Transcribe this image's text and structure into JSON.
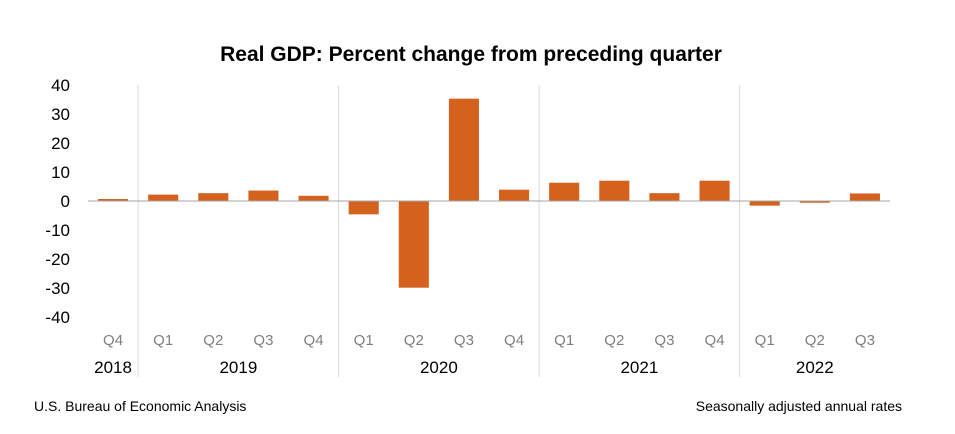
{
  "chart_data": {
    "type": "bar",
    "title": "Real GDP:  Percent change from preceding quarter",
    "categories": [
      "Q4",
      "Q1",
      "Q2",
      "Q3",
      "Q4",
      "Q1",
      "Q2",
      "Q3",
      "Q4",
      "Q1",
      "Q2",
      "Q3",
      "Q4",
      "Q1",
      "Q2",
      "Q3"
    ],
    "years": [
      {
        "label": "2018",
        "start": 0,
        "end": 0
      },
      {
        "label": "2019",
        "start": 1,
        "end": 4
      },
      {
        "label": "2020",
        "start": 5,
        "end": 8
      },
      {
        "label": "2021",
        "start": 9,
        "end": 12
      },
      {
        "label": "2022",
        "start": 13,
        "end": 15
      }
    ],
    "values": [
      0.7,
      2.2,
      2.7,
      3.6,
      1.8,
      -4.6,
      -29.9,
      35.3,
      3.9,
      6.3,
      7.0,
      2.7,
      7.0,
      -1.6,
      -0.6,
      2.6
    ],
    "ylim": [
      -40,
      40
    ],
    "yticks": [
      40,
      30,
      20,
      10,
      0,
      -10,
      -20,
      -30,
      -40
    ],
    "xlabel": "",
    "ylabel": "",
    "grid": false,
    "bar_color": "#D4621E",
    "source": "U.S. Bureau of Economic Analysis",
    "note": "Seasonally adjusted annual rates"
  }
}
